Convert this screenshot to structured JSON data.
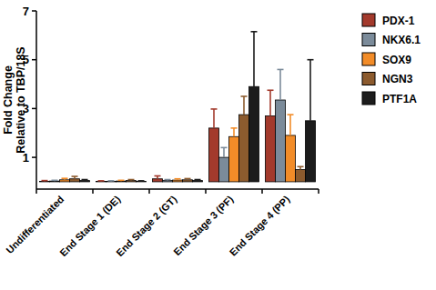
{
  "chart_data": {
    "type": "bar",
    "y_label": "Fold Change\nRelative to TBP/18S",
    "categories": [
      "Undifferentiated",
      "End Stage 1 (DE)",
      "End Stage 2 (GT)",
      "End Stage 3 (PF)",
      "End Stage 4 (PP)"
    ],
    "series": [
      {
        "name": "PDX-1",
        "color": "#a33a2c",
        "values": [
          0.02,
          0.02,
          0.12,
          2.2,
          2.7
        ],
        "errors": [
          0.03,
          0.02,
          0.12,
          0.78,
          1.05
        ]
      },
      {
        "name": "NKX6.1",
        "color": "#7b8b9a",
        "values": [
          0.03,
          0.02,
          0.05,
          1.0,
          3.35
        ],
        "errors": [
          0.03,
          0.02,
          0.04,
          0.4,
          1.25
        ]
      },
      {
        "name": "SOX9",
        "color": "#f28c28",
        "values": [
          0.08,
          0.03,
          0.07,
          1.85,
          1.9
        ],
        "errors": [
          0.06,
          0.03,
          0.05,
          0.35,
          0.85
        ]
      },
      {
        "name": "NGN3",
        "color": "#8c5b2e",
        "values": [
          0.12,
          0.05,
          0.08,
          2.75,
          0.5
        ],
        "errors": [
          0.1,
          0.04,
          0.05,
          0.75,
          0.12
        ]
      },
      {
        "name": "PTF1A",
        "color": "#1c1c1c",
        "values": [
          0.05,
          0.02,
          0.05,
          3.9,
          2.5
        ],
        "errors": [
          0.04,
          0.02,
          0.04,
          2.25,
          2.5
        ]
      }
    ],
    "ylim": [
      -0.3,
      7
    ],
    "yticks": [
      1,
      3,
      5,
      7
    ],
    "legend": "right",
    "grid": false
  }
}
